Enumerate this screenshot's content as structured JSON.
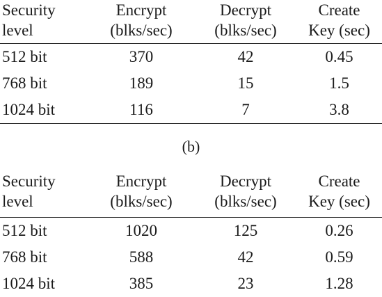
{
  "headers": {
    "security_1": "Security",
    "security_2": "level",
    "encrypt_1": "Encrypt",
    "encrypt_2": "(blks/sec)",
    "decrypt_1": "Decrypt",
    "decrypt_2": "(blks/sec)",
    "create_1": "Create",
    "create_2": "Key (sec)"
  },
  "table_a": {
    "rows": [
      {
        "level": "512 bit",
        "encrypt": "370",
        "decrypt": "42",
        "create": "0.45"
      },
      {
        "level": "768 bit",
        "encrypt": "189",
        "decrypt": "15",
        "create": "1.5"
      },
      {
        "level": "1024 bit",
        "encrypt": "116",
        "decrypt": "7",
        "create": "3.8"
      }
    ]
  },
  "caption_b": "(b)",
  "table_b": {
    "rows": [
      {
        "level": "512 bit",
        "encrypt": "1020",
        "decrypt": "125",
        "create": "0.26"
      },
      {
        "level": "768 bit",
        "encrypt": "588",
        "decrypt": "42",
        "create": "0.59"
      },
      {
        "level": "1024 bit",
        "encrypt": "385",
        "decrypt": "23",
        "create": "1.28"
      }
    ]
  }
}
